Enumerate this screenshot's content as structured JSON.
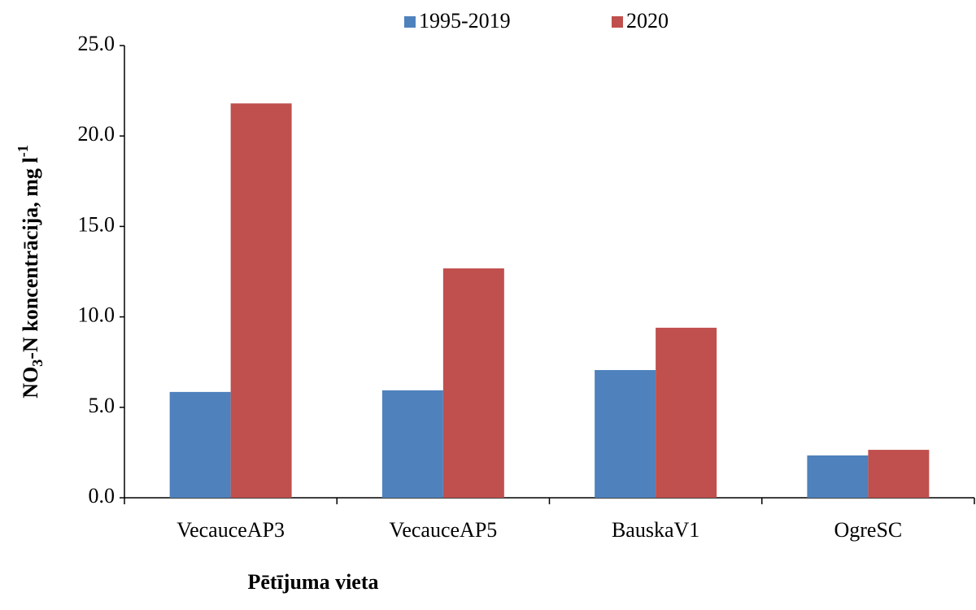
{
  "chart_data": {
    "type": "bar",
    "ylabel_parts": [
      "NO",
      "3",
      "-N koncentrācija, mg l",
      "-1"
    ],
    "xlabel": "Pētījuma vieta",
    "categories": [
      "VecauceAP3",
      "VecauceAP5",
      "BauskaV1",
      "OgreSC"
    ],
    "series": [
      {
        "name": "1995-2019",
        "color": "#4f81bd",
        "values": [
          5.85,
          5.94,
          7.06,
          2.34
        ]
      },
      {
        "name": "2020",
        "color": "#c0504d",
        "values": [
          21.8,
          12.68,
          9.4,
          2.65
        ]
      }
    ],
    "ylim": [
      0,
      25
    ],
    "yticks": [
      {
        "value": 0,
        "label": "0.0"
      },
      {
        "value": 5,
        "label": "5.0"
      },
      {
        "value": 10,
        "label": "10.0"
      },
      {
        "value": 15,
        "label": "15.0"
      },
      {
        "value": 20,
        "label": "20.0"
      },
      {
        "value": 25,
        "label": "25.0"
      }
    ],
    "grid": false,
    "legend": "top"
  }
}
